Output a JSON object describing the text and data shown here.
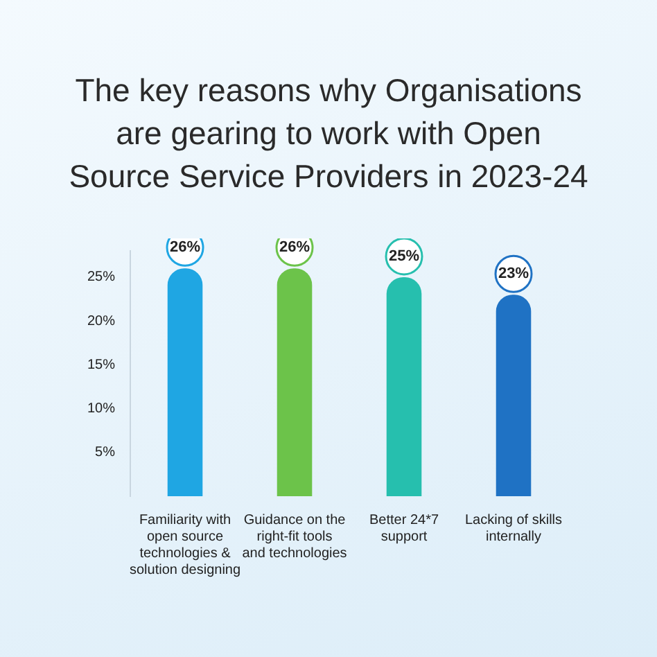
{
  "chart_data": {
    "type": "bar",
    "title": "The key reasons why Organisations are gearing to work with Open Source Service Providers in 2023-24",
    "categories": [
      "Familiarity with open source technologies & solution designing",
      "Guidance on the right-fit tools and technologies",
      "Better 24*7 support",
      "Lacking of skills internally"
    ],
    "values": [
      26,
      26,
      25,
      23
    ],
    "colors": [
      "#1fa6e3",
      "#6cc34a",
      "#26bfae",
      "#1f72c4"
    ],
    "ylim": [
      0,
      28
    ],
    "yticks": [
      {
        "value": 5,
        "label": "5%"
      },
      {
        "value": 10,
        "label": "10%"
      },
      {
        "value": 15,
        "label": "15%"
      },
      {
        "value": 20,
        "label": "20%"
      },
      {
        "value": 25,
        "label": "25%"
      }
    ],
    "value_labels": [
      "26%",
      "26%",
      "25%",
      "23%"
    ],
    "grid": false,
    "legend": false
  }
}
